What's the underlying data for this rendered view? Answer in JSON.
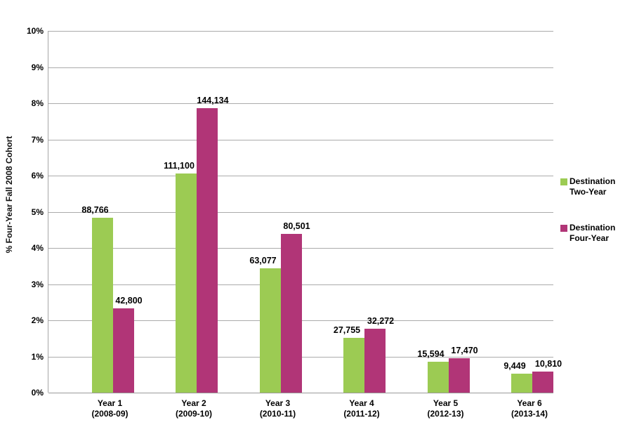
{
  "page": {
    "background": "#ffffff"
  },
  "chart_data": {
    "type": "bar",
    "title": "",
    "xlabel": "",
    "ylabel": "% Four-Year Fall 2008 Cohort",
    "ylim": [
      0,
      10
    ],
    "ytick_step": 1,
    "yticks": [
      "0%",
      "1%",
      "2%",
      "3%",
      "4%",
      "5%",
      "6%",
      "7%",
      "8%",
      "9%",
      "10%"
    ],
    "grid": "horizontal",
    "legend_position": "right",
    "categories": [
      "Year 1",
      "Year 2",
      "Year 3",
      "Year 4",
      "Year 5",
      "Year 6"
    ],
    "category_sublabels": [
      "(2008-09)",
      "(2009-10)",
      "(2010-11)",
      "(2011-12)",
      "(2012-13)",
      "(2013-14)"
    ],
    "series": [
      {
        "name": "Destination Two-Year",
        "color": "#9CCB53",
        "values_pct": [
          4.84,
          6.06,
          3.44,
          1.51,
          0.85,
          0.52
        ],
        "value_labels": [
          "88,766",
          "111,100",
          "63,077",
          "27,755",
          "15,594",
          "9,449"
        ]
      },
      {
        "name": "Destination Four-Year",
        "color": "#B13577",
        "values_pct": [
          2.33,
          7.86,
          4.39,
          1.76,
          0.95,
          0.59
        ],
        "value_labels": [
          "42,800",
          "144,134",
          "80,501",
          "32,272",
          "17,470",
          "10,810"
        ]
      }
    ],
    "colors": {
      "gridline": "#ABABAB",
      "axis": "#A6A6A6",
      "text": "#000000"
    }
  }
}
